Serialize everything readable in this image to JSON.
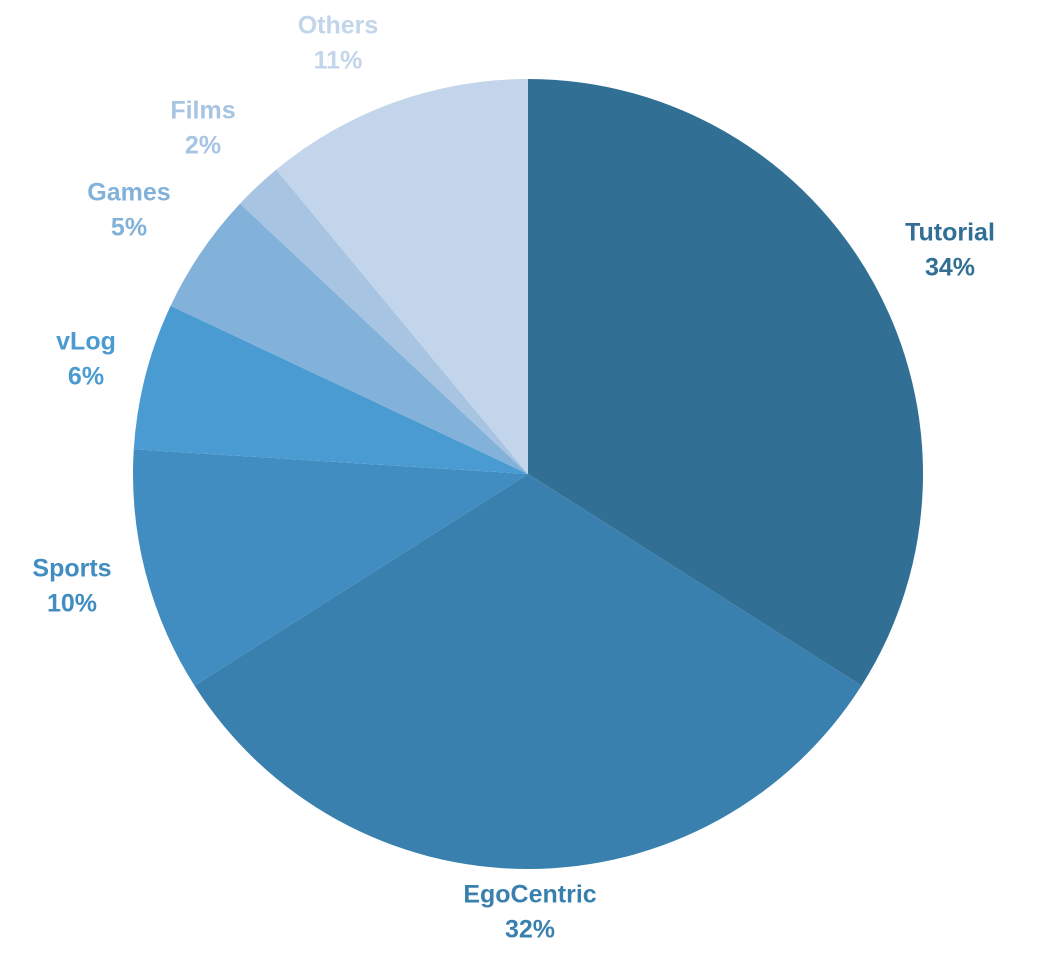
{
  "chart_data": {
    "type": "pie",
    "title": "",
    "start_angle_deg": 0,
    "direction": "clockwise",
    "slices": [
      {
        "label": "Tutorial",
        "value": 34,
        "value_label": "34%",
        "color": "#326f95",
        "label_color": "#326f95"
      },
      {
        "label": "EgoCentric",
        "value": 32,
        "value_label": "32%",
        "color": "#3a80ae",
        "label_color": "#3a80ae"
      },
      {
        "label": "Sports",
        "value": 10,
        "value_label": "10%",
        "color": "#418cc1",
        "label_color": "#418cc1"
      },
      {
        "label": "vLog",
        "value": 6,
        "value_label": "6%",
        "color": "#4a9bd1",
        "label_color": "#4a9bd1"
      },
      {
        "label": "Games",
        "value": 5,
        "value_label": "5%",
        "color": "#82b1d9",
        "label_color": "#82b1d9"
      },
      {
        "label": "Films",
        "value": 2,
        "value_label": "2%",
        "color": "#a7c4e2",
        "label_color": "#a7c4e2"
      },
      {
        "label": "Others",
        "value": 11,
        "value_label": "11%",
        "color": "#c3d5ea",
        "label_color": "#c3d5ea"
      }
    ]
  }
}
